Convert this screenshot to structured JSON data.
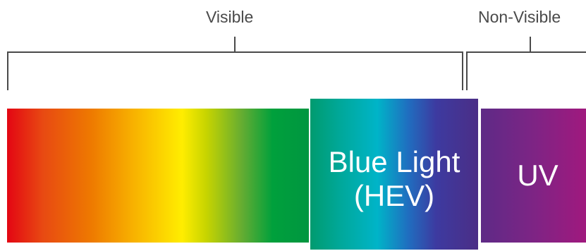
{
  "brackets": {
    "visible_label": "Visible",
    "nonvisible_label": "Non-Visible"
  },
  "bands": {
    "blue_light": {
      "line1": "Blue Light",
      "line2": "(HEV)"
    },
    "uv": "UV"
  },
  "colors": {
    "bracket_line": "#4a4a4a",
    "label_text": "#4a4a4a",
    "band_text": "#ffffff"
  }
}
